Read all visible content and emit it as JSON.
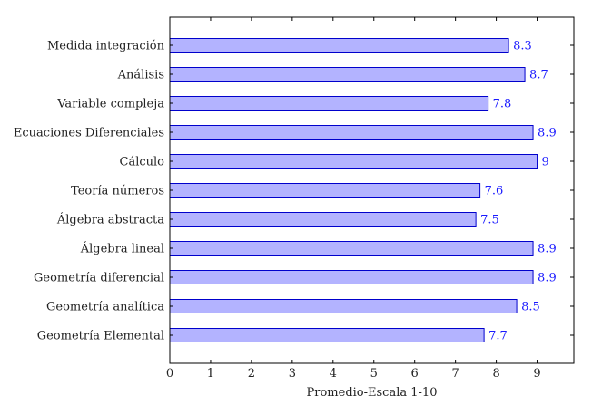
{
  "chart_data": {
    "type": "bar",
    "orientation": "horizontal",
    "categories": [
      "Geometría Elemental",
      "Geometría analítica",
      "Geometría diferencial",
      "Álgebra lineal",
      "Álgebra abstracta",
      "Teoría números",
      "Cálculo",
      "Ecuaciones Diferenciales",
      "Variable compleja",
      "Análisis",
      "Medida integración"
    ],
    "values": [
      7.7,
      8.5,
      8.9,
      8.9,
      7.5,
      7.6,
      9,
      8.9,
      7.8,
      8.7,
      8.3
    ],
    "value_labels": [
      "7.7",
      "8.5",
      "8.9",
      "8.9",
      "7.5",
      "7.6",
      "9",
      "8.9",
      "7.8",
      "8.7",
      "8.3"
    ],
    "xlabel": "Promedio-Escala 1-10",
    "xlim": [
      0,
      9.9
    ],
    "xticks": [
      0,
      1,
      2,
      3,
      4,
      5,
      6,
      7,
      8,
      9
    ],
    "grid": false,
    "colors": {
      "bar_fill": "#b3b3ff",
      "bar_stroke": "#0000cc",
      "value_label": "#1a1aff",
      "axis": "#000000"
    }
  }
}
